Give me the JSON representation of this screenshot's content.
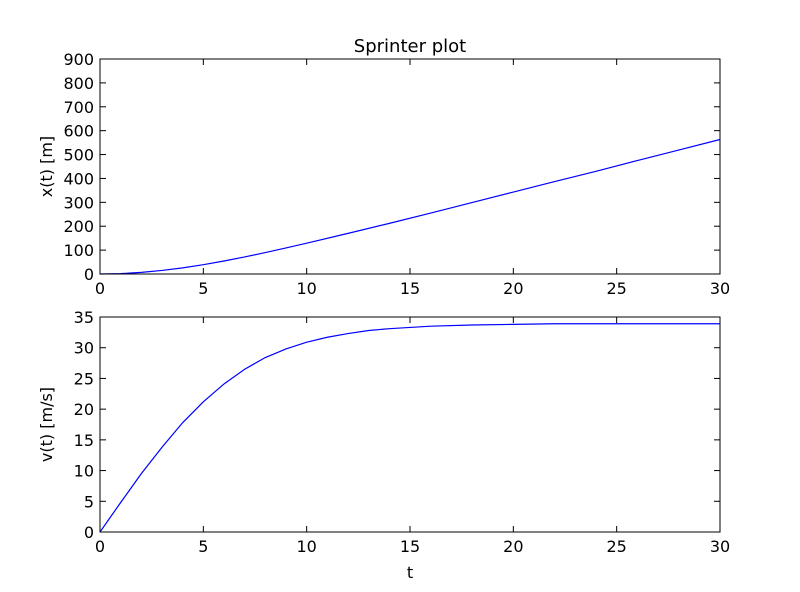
{
  "figure": {
    "title": "Sprinter plot"
  },
  "chart_data": [
    {
      "type": "line",
      "title": "Sprinter plot",
      "xlabel": "",
      "ylabel": "x(t) [m]",
      "xlim": [
        0,
        30
      ],
      "ylim": [
        0,
        900
      ],
      "xticks": [
        0,
        5,
        10,
        15,
        20,
        25,
        30
      ],
      "yticks": [
        0,
        100,
        200,
        300,
        400,
        500,
        600,
        700,
        800,
        900
      ],
      "grid": false,
      "series": [
        {
          "color": "#0000ff",
          "x": [
            0,
            1,
            2,
            3,
            4,
            5,
            6,
            7,
            8,
            9,
            10,
            12,
            14,
            16,
            18,
            20,
            22,
            24,
            26,
            28,
            30
          ],
          "y": [
            0,
            1.7,
            6.7,
            14.8,
            25.7,
            39.0,
            54.4,
            71.4,
            89.8,
            109.1,
            129.0,
            170,
            212,
            255,
            299,
            343,
            387,
            430,
            475,
            519,
            563
          ]
        }
      ]
    },
    {
      "type": "line",
      "title": "",
      "xlabel": "t",
      "ylabel": "v(t) [m/s]",
      "xlim": [
        0,
        30
      ],
      "ylim": [
        0,
        35
      ],
      "xticks": [
        0,
        5,
        10,
        15,
        20,
        25,
        30
      ],
      "yticks": [
        0,
        5,
        10,
        15,
        20,
        25,
        30,
        35
      ],
      "grid": false,
      "series": [
        {
          "color": "#0000ff",
          "x": [
            0,
            1,
            2,
            3,
            4,
            5,
            6,
            7,
            8,
            9,
            10,
            11,
            12,
            13,
            14,
            15,
            16,
            18,
            20,
            22,
            24,
            26,
            28,
            30
          ],
          "y": [
            0,
            4.8,
            9.5,
            13.8,
            17.8,
            21.2,
            24.1,
            26.5,
            28.4,
            29.8,
            30.9,
            31.7,
            32.3,
            32.8,
            33.1,
            33.3,
            33.5,
            33.7,
            33.8,
            33.9,
            33.9,
            33.9,
            33.9,
            33.9
          ]
        }
      ]
    }
  ]
}
